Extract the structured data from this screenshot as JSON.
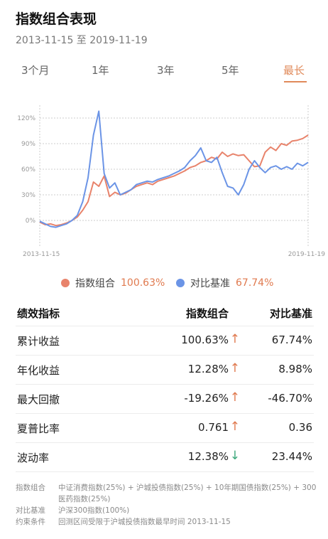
{
  "header": {
    "title": "指数组合表现",
    "date_range": "2013-11-15 至 2019-11-19"
  },
  "tabs": [
    {
      "label": "3个月",
      "active": false
    },
    {
      "label": "1年",
      "active": false
    },
    {
      "label": "3年",
      "active": false
    },
    {
      "label": "5年",
      "active": false
    },
    {
      "label": "最长",
      "active": true
    }
  ],
  "colors": {
    "accent": "#e08a5a",
    "portfolio": "#e8836b",
    "benchmark": "#6b94e6",
    "up": "#e07a4f",
    "down": "#3aa77a"
  },
  "chart_data": {
    "type": "line",
    "x_start_label": "2013-11-15",
    "x_end_label": "2019-11-19",
    "y_ticks": [
      "120%",
      "90%",
      "60%",
      "30%",
      "0%"
    ],
    "y_tick_values": [
      120,
      90,
      60,
      30,
      0
    ],
    "ylim": [
      -15,
      135
    ],
    "grid": true,
    "series": [
      {
        "name": "指数组合",
        "color": "#e8836b",
        "x": [
          0,
          0.02,
          0.04,
          0.06,
          0.08,
          0.1,
          0.12,
          0.14,
          0.16,
          0.18,
          0.2,
          0.22,
          0.24,
          0.26,
          0.28,
          0.3,
          0.32,
          0.34,
          0.36,
          0.38,
          0.4,
          0.42,
          0.44,
          0.46,
          0.48,
          0.5,
          0.52,
          0.54,
          0.56,
          0.58,
          0.6,
          0.62,
          0.64,
          0.66,
          0.68,
          0.7,
          0.72,
          0.74,
          0.76,
          0.78,
          0.8,
          0.82,
          0.84,
          0.86,
          0.88,
          0.9,
          0.92,
          0.94,
          0.96,
          0.98,
          1.0
        ],
        "values": [
          -2,
          -5,
          -4,
          -6,
          -5,
          -3,
          0,
          4,
          12,
          22,
          45,
          40,
          52,
          28,
          33,
          30,
          32,
          36,
          40,
          42,
          44,
          42,
          46,
          48,
          50,
          52,
          55,
          58,
          62,
          64,
          68,
          70,
          74,
          72,
          80,
          75,
          78,
          76,
          77,
          70,
          63,
          64,
          80,
          86,
          82,
          90,
          88,
          93,
          94,
          96,
          100
        ]
      },
      {
        "name": "对比基准",
        "color": "#6b94e6",
        "x": [
          0,
          0.02,
          0.04,
          0.06,
          0.08,
          0.1,
          0.12,
          0.14,
          0.16,
          0.18,
          0.2,
          0.22,
          0.24,
          0.26,
          0.28,
          0.3,
          0.32,
          0.34,
          0.36,
          0.38,
          0.4,
          0.42,
          0.44,
          0.46,
          0.48,
          0.5,
          0.52,
          0.54,
          0.56,
          0.58,
          0.6,
          0.62,
          0.64,
          0.66,
          0.68,
          0.7,
          0.72,
          0.74,
          0.76,
          0.78,
          0.8,
          0.82,
          0.84,
          0.86,
          0.88,
          0.9,
          0.92,
          0.94,
          0.96,
          0.98,
          1.0
        ],
        "values": [
          -1,
          -4,
          -7,
          -8,
          -6,
          -4,
          0,
          6,
          22,
          50,
          100,
          128,
          55,
          38,
          44,
          30,
          33,
          36,
          42,
          44,
          46,
          45,
          48,
          50,
          52,
          55,
          58,
          62,
          70,
          76,
          85,
          70,
          68,
          74,
          56,
          40,
          38,
          30,
          42,
          60,
          70,
          62,
          56,
          62,
          64,
          60,
          63,
          60,
          67,
          64,
          68
        ]
      }
    ]
  },
  "legend": [
    {
      "label": "指数组合",
      "value": "100.63%",
      "color": "#e8836b"
    },
    {
      "label": "对比基准",
      "value": "67.74%",
      "color": "#6b94e6"
    }
  ],
  "table": {
    "headers": [
      "绩效指标",
      "指数组合",
      "对比基准"
    ],
    "rows": [
      {
        "label": "累计收益",
        "portfolio": "100.63%",
        "arrow": "↑",
        "arrow_dir": "up",
        "benchmark": "67.74%"
      },
      {
        "label": "年化收益",
        "portfolio": "12.28%",
        "arrow": "↑",
        "arrow_dir": "up",
        "benchmark": "8.98%"
      },
      {
        "label": "最大回撤",
        "portfolio": "-19.26%",
        "arrow": "↑",
        "arrow_dir": "up",
        "benchmark": "-46.70%"
      },
      {
        "label": "夏普比率",
        "portfolio": "0.761",
        "arrow": "↑",
        "arrow_dir": "up",
        "benchmark": "0.36"
      },
      {
        "label": "波动率",
        "portfolio": "12.38%",
        "arrow": "↓",
        "arrow_dir": "down",
        "benchmark": "23.44%"
      }
    ]
  },
  "notes": [
    {
      "key": "指数组合",
      "value": "中证消费指数(25%) + 沪城投债指数(25%) + 10年期国债指数(25%) + 300医药指数(25%)"
    },
    {
      "key": "对比基准",
      "value": "沪深300指数(100%)"
    },
    {
      "key": "约束条件",
      "value": "回测区间受限于沪城投债指数最早时间 2013-11-15"
    }
  ]
}
